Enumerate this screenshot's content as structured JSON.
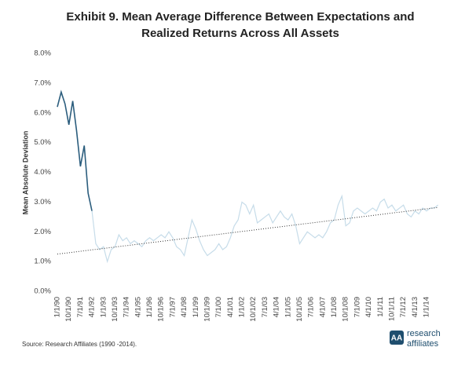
{
  "chart_data": {
    "type": "line",
    "title": [
      "Exhibit 9. Mean Average Difference Between Expectations and",
      "Realized Returns Across All Assets"
    ],
    "y_label": "Mean Absolute Deviation",
    "source": "Source: Research Affiliates (1990 -2014).",
    "logo": [
      "research",
      "affiliates"
    ],
    "ylim": [
      0,
      8
    ],
    "yticks": [
      {
        "value": 0,
        "label": "0.0%"
      },
      {
        "value": 1,
        "label": "1.0%"
      },
      {
        "value": 2,
        "label": "2.0%"
      },
      {
        "value": 3,
        "label": "3.0%"
      },
      {
        "value": 4,
        "label": "4.0%"
      },
      {
        "value": 5,
        "label": "5.0%"
      },
      {
        "value": 6,
        "label": "6.0%"
      },
      {
        "value": 7,
        "label": "7.0%"
      },
      {
        "value": 8,
        "label": "8.0%"
      }
    ],
    "grid": false,
    "x": [
      "1/1/90",
      "4/1/90",
      "7/1/90",
      "10/1/90",
      "1/1/91",
      "4/1/91",
      "7/1/91",
      "10/1/91",
      "1/1/92",
      "4/1/92",
      "7/1/92",
      "10/1/92",
      "1/1/93",
      "4/1/93",
      "7/1/93",
      "10/1/93",
      "1/1/94",
      "4/1/94",
      "7/1/94",
      "10/1/94",
      "1/1/95",
      "4/1/95",
      "7/1/95",
      "10/1/95",
      "1/1/96",
      "4/1/96",
      "7/1/96",
      "10/1/96",
      "1/1/97",
      "4/1/97",
      "7/1/97",
      "10/1/97",
      "1/1/98",
      "4/1/98",
      "7/1/98",
      "10/1/98",
      "1/1/99",
      "4/1/99",
      "7/1/99",
      "10/1/99",
      "1/1/00",
      "4/1/00",
      "7/1/00",
      "10/1/00",
      "1/1/01",
      "4/1/01",
      "7/1/01",
      "10/1/01",
      "1/1/02",
      "4/1/02",
      "7/1/02",
      "10/1/02",
      "1/1/03",
      "4/1/03",
      "7/1/03",
      "10/1/03",
      "1/1/04",
      "4/1/04",
      "7/1/04",
      "10/1/04",
      "1/1/05",
      "4/1/05",
      "7/1/05",
      "10/1/05",
      "1/1/06",
      "4/1/06",
      "7/1/06",
      "10/1/06",
      "1/1/07",
      "4/1/07",
      "7/1/07",
      "10/1/07",
      "1/1/08",
      "4/1/08",
      "7/1/08",
      "10/1/08",
      "1/1/09",
      "4/1/09",
      "7/1/09",
      "10/1/09",
      "1/1/10",
      "4/1/10",
      "7/1/10",
      "10/1/10",
      "1/1/11",
      "4/1/11",
      "7/1/11",
      "10/1/11",
      "1/1/12",
      "4/1/12",
      "7/1/12",
      "10/1/12",
      "1/1/13",
      "4/1/13",
      "7/1/13",
      "10/1/13",
      "1/1/14",
      "4/1/14",
      "7/1/14",
      "10/1/14"
    ],
    "xticks": [
      "1/1/90",
      "10/1/90",
      "7/1/91",
      "4/1/92",
      "1/1/93",
      "10/1/93",
      "7/1/94",
      "4/1/95",
      "1/1/96",
      "10/1/96",
      "7/1/97",
      "4/1/98",
      "1/1/99",
      "10/1/99",
      "7/1/00",
      "4/1/01",
      "1/1/02",
      "10/1/02",
      "7/1/03",
      "4/1/04",
      "1/1/05",
      "10/1/05",
      "7/1/06",
      "4/1/07",
      "1/1/08",
      "10/1/08",
      "7/1/09",
      "4/1/10",
      "1/1/11",
      "10/1/11",
      "7/1/12",
      "4/1/13",
      "1/1/14"
    ],
    "series": [
      {
        "color": "#2b5d7d",
        "values": [
          6.2,
          6.7,
          6.3,
          5.6,
          6.4,
          5.4,
          4.2,
          4.9,
          3.3,
          2.7,
          null,
          null,
          null,
          null,
          null,
          null,
          null,
          null,
          null,
          null,
          null,
          null,
          null,
          null,
          null,
          null,
          null,
          null,
          null,
          null,
          null,
          null,
          null,
          null,
          null,
          null,
          null,
          null,
          null,
          null,
          null,
          null,
          null,
          null,
          null,
          null,
          null,
          null,
          null,
          null,
          null,
          null,
          null,
          null,
          null,
          null,
          null,
          null,
          null,
          null,
          null,
          null,
          null,
          null,
          null,
          null,
          null,
          null,
          null,
          null,
          null,
          null,
          null,
          null,
          null,
          null,
          null,
          null,
          null,
          null,
          null,
          null,
          null,
          null,
          null,
          null,
          null,
          null,
          null,
          null,
          null,
          null,
          null,
          null,
          null,
          null,
          null,
          null,
          null,
          null
        ]
      },
      {
        "color": "#c6dce9",
        "values": [
          null,
          null,
          null,
          null,
          null,
          null,
          null,
          null,
          null,
          2.7,
          1.6,
          1.4,
          1.5,
          1.0,
          1.4,
          1.5,
          1.9,
          1.7,
          1.8,
          1.6,
          1.7,
          1.6,
          1.5,
          1.7,
          1.8,
          1.7,
          1.8,
          1.9,
          1.8,
          2.0,
          1.8,
          1.5,
          1.4,
          1.2,
          1.8,
          2.4,
          2.1,
          1.7,
          1.4,
          1.2,
          1.3,
          1.4,
          1.6,
          1.4,
          1.5,
          1.8,
          2.2,
          2.4,
          3.0,
          2.9,
          2.6,
          2.9,
          2.3,
          2.4,
          2.5,
          2.6,
          2.3,
          2.5,
          2.7,
          2.5,
          2.4,
          2.6,
          2.2,
          1.6,
          1.8,
          2.0,
          1.9,
          1.8,
          1.9,
          1.8,
          2.0,
          2.3,
          2.4,
          2.9,
          3.2,
          2.2,
          2.3,
          2.7,
          2.8,
          2.7,
          2.6,
          2.7,
          2.8,
          2.7,
          3.0,
          3.1,
          2.8,
          2.9,
          2.7,
          2.8,
          2.9,
          2.6,
          2.5,
          2.7,
          2.6,
          2.8,
          2.7,
          2.8,
          2.8,
          2.9
        ]
      }
    ],
    "trend": {
      "color": "#333333",
      "x": [
        "1/1/90",
        "10/1/14"
      ],
      "values": [
        1.25,
        2.82
      ]
    }
  }
}
